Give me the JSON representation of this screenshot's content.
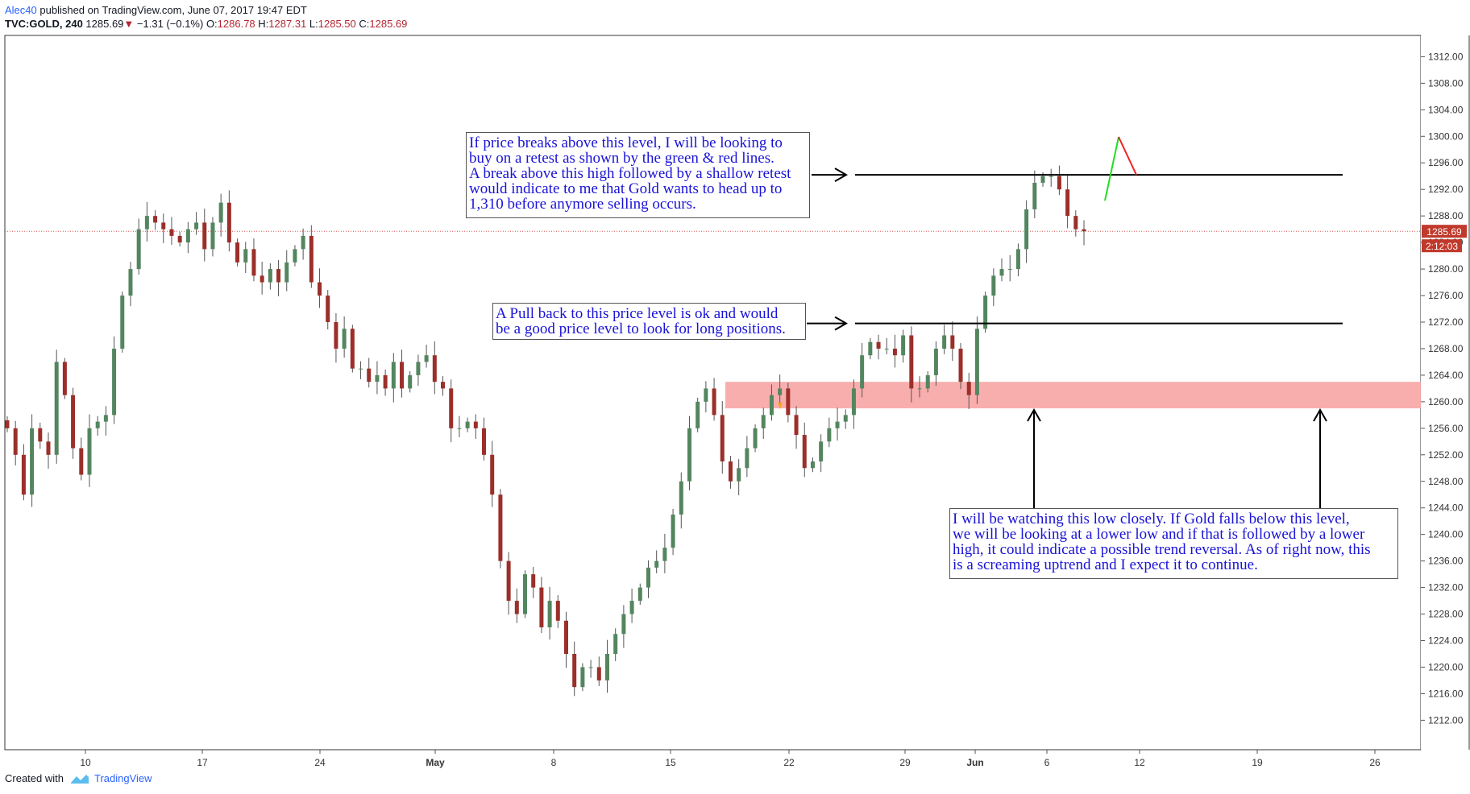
{
  "header": {
    "author": "Alec40",
    "published": "published on TradingView.com, June 07, 2017 19:47 EDT",
    "symbol": "TVC:GOLD, 240",
    "last_price": "1285.69",
    "change_arrow": "▼",
    "change": "−1.31 (−0.1%)",
    "o_label": "O:",
    "o_val": "1286.78",
    "h_label": "H:",
    "h_val": "1287.31",
    "l_label": "L:",
    "l_val": "1285.50",
    "c_label": "C:",
    "c_val": "1285.69"
  },
  "footer": {
    "created_with": "Created with",
    "brand": "TradingView"
  },
  "price_tag": {
    "price": "1285.69",
    "countdown": "2:12:03",
    "color": "#c0392b"
  },
  "notes": [
    {
      "text": "If price breaks above this level, I will be looking to\nbuy on a retest as shown by the green & red lines.\nA break above this high followed by a shallow retest\nwould indicate to me that Gold wants to head up to\n1,310 before anymore selling occurs."
    },
    {
      "text": "A Pull back to this price level is ok and would\nbe a good price level to look for long positions."
    },
    {
      "text": "I will be watching this low closely. If Gold falls below this level,\nwe will be looking at a lower low and if that is followed by a lower\nhigh, it could indicate a possible trend reversal. As of right now, this\nis a screaming uptrend and I expect it to continue."
    }
  ],
  "chart_data": {
    "type": "candlestick",
    "symbol": "TVC:GOLD",
    "timeframe": "240",
    "ylim": [
      1208,
      1314
    ],
    "y_ticks": [
      "1312.00",
      "1308.00",
      "1304.00",
      "1300.00",
      "1296.00",
      "1292.00",
      "1288.00",
      "1284.00",
      "1280.00",
      "1276.00",
      "1272.00",
      "1268.00",
      "1264.00",
      "1260.00",
      "1256.00",
      "1252.00",
      "1248.00",
      "1244.00",
      "1240.00",
      "1236.00",
      "1232.00",
      "1228.00",
      "1224.00",
      "1220.00",
      "1216.00",
      "1212.00"
    ],
    "x_ticks": [
      "10",
      "17",
      "24",
      "May",
      "8",
      "15",
      "22",
      "29",
      "Jun",
      "6",
      "12",
      "19",
      "26"
    ],
    "approx_closes": [
      1256,
      1252,
      1246,
      1256,
      1254,
      1252,
      1266,
      1261,
      1253,
      1249,
      1256,
      1257,
      1258,
      1268,
      1276,
      1280,
      1286,
      1288,
      1287,
      1286,
      1285,
      1284,
      1286,
      1287,
      1283,
      1287,
      1290,
      1284,
      1281,
      1283,
      1279,
      1278,
      1280,
      1278,
      1281,
      1283,
      1285,
      1278,
      1276,
      1272,
      1268,
      1271,
      1265,
      1265,
      1263,
      1264,
      1262,
      1266,
      1262,
      1264,
      1266,
      1267,
      1263,
      1262,
      1256,
      1256,
      1257,
      1256,
      1252,
      1246,
      1236,
      1230,
      1228,
      1234,
      1232,
      1226,
      1230,
      1227,
      1222,
      1217,
      1220,
      1220,
      1218,
      1222,
      1225,
      1228,
      1230,
      1232,
      1235,
      1236,
      1238,
      1243,
      1248,
      1256,
      1260,
      1262,
      1258,
      1251,
      1248,
      1250,
      1253,
      1256,
      1258,
      1261,
      1262,
      1258,
      1255,
      1250,
      1251,
      1254,
      1256,
      1257,
      1258,
      1262,
      1267,
      1269,
      1268,
      1268,
      1267,
      1270,
      1262,
      1262,
      1264,
      1268,
      1270,
      1268,
      1263,
      1261,
      1271,
      1276,
      1279,
      1280,
      1280,
      1283,
      1289,
      1293,
      1294,
      1294,
      1292,
      1288,
      1286,
      1285.69
    ],
    "levels": [
      {
        "value": 1294.2,
        "color": "#000000"
      },
      {
        "value": 1271.8,
        "color": "#000000"
      }
    ],
    "zone": {
      "low": 1259.0,
      "high": 1263.0,
      "color": "#f8a5a5"
    },
    "current_price_line": 1285.69,
    "projection": [
      {
        "from": 1290.3,
        "to": 1299.9,
        "color": "#22dd22"
      },
      {
        "from": 1299.9,
        "to": 1294.2,
        "color": "#ee2222"
      }
    ]
  }
}
